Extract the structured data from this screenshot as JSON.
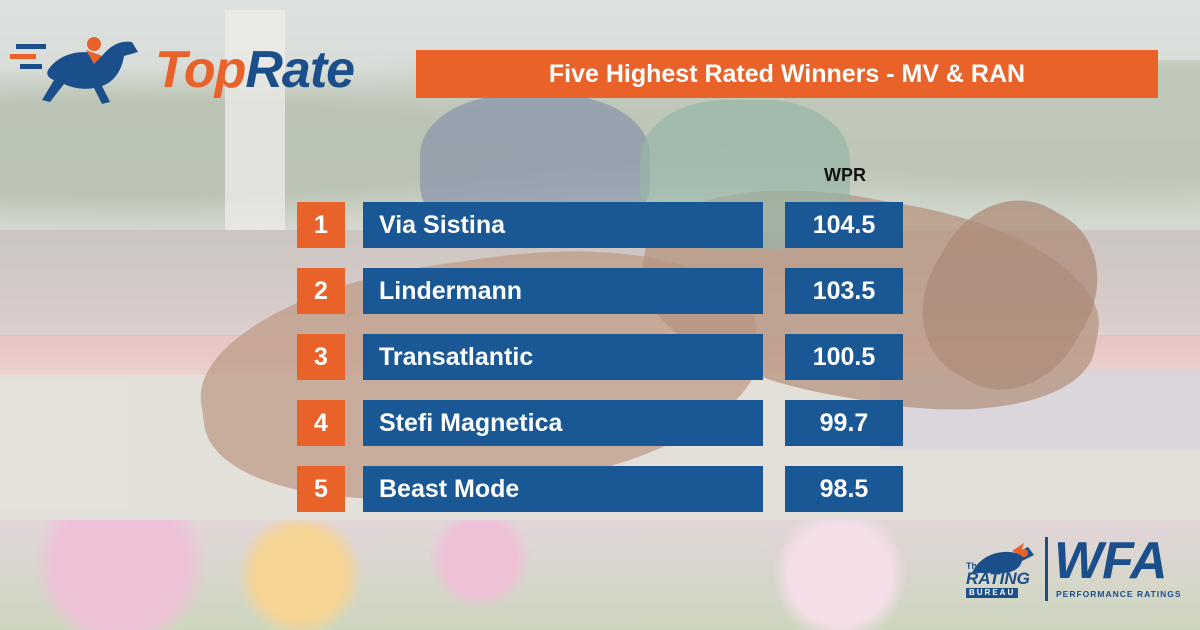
{
  "brand": {
    "part1": "Top",
    "part2": "Rate"
  },
  "title": "Five Highest Rated Winners - MV & RAN",
  "chart_data": {
    "type": "table",
    "columns": [
      "",
      "",
      "WPR"
    ],
    "rows": [
      {
        "rank": "1",
        "horse": "Via Sistina",
        "wpr": "104.5"
      },
      {
        "rank": "2",
        "horse": "Lindermann",
        "wpr": "103.5"
      },
      {
        "rank": "3",
        "horse": "Transatlantic",
        "wpr": "100.5"
      },
      {
        "rank": "4",
        "horse": "Stefi Magnetica",
        "wpr": "99.7"
      },
      {
        "rank": "5",
        "horse": "Beast Mode",
        "wpr": "98.5"
      }
    ]
  },
  "badge": {
    "the": "The",
    "rating": "RATING",
    "bureau": "BUREAU",
    "wfa": "WFA",
    "performance": "PERFORMANCE RATINGS"
  },
  "colors": {
    "orange": "#e8622a",
    "blue": "#1a5795",
    "navy": "#1a4f8c"
  },
  "icons": [
    "running-horse-logo-icon",
    "rating-bureau-horse-icon"
  ]
}
